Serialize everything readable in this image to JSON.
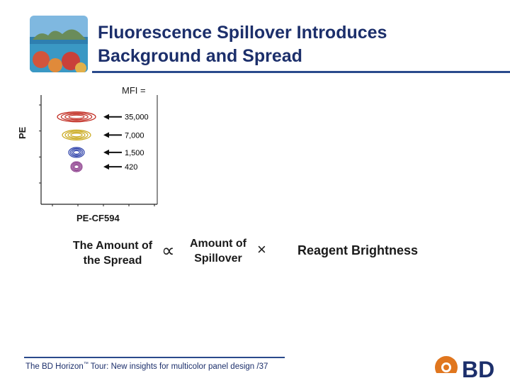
{
  "slide": {
    "title_line1": "Fluorescence Spillover Introduces",
    "title_line2": "Background and Spread",
    "footer_lead": "The BD Horizon",
    "footer_tm": "™",
    "footer_tour": " Tour:",
    "footer_rest": " New insights for multicolor panel design",
    "footer_page": " /37",
    "brand": "BD"
  },
  "formula": {
    "amount_spread_line1": "The Amount of",
    "amount_spread_line2": "the Spread",
    "proportional": "∝",
    "amount_spillover_line1": "Amount of",
    "amount_spillover_line2": "Spillover",
    "times": "×",
    "reagent": "Reagent Brightness"
  },
  "chart_data": {
    "type": "scatter",
    "title": "MFI =",
    "xlabel": "PE-CF594",
    "ylabel": "PE",
    "series": [
      {
        "name": "35,000",
        "color": "#c0281e",
        "pe_mfi": 35000
      },
      {
        "name": "7,000",
        "color": "#c9a81a",
        "pe_mfi": 7000
      },
      {
        "name": "1,500",
        "color": "#2b3fa8",
        "pe_mfi": 1500
      },
      {
        "name": "420",
        "color": "#8a3a8a",
        "pe_mfi": 420
      }
    ],
    "annotations": [
      "35,000",
      "7,000",
      "1,500",
      "420"
    ],
    "axis": "log"
  }
}
